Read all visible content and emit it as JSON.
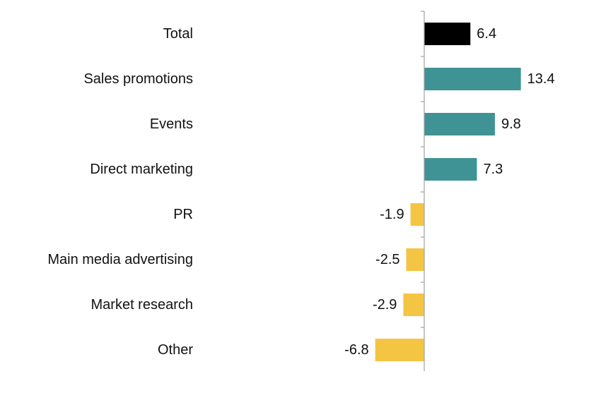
{
  "chart_data": {
    "type": "bar",
    "orientation": "horizontal",
    "title": "",
    "xlabel": "",
    "ylabel": "",
    "categories": [
      "Total",
      "Sales promotions",
      "Events",
      "Direct marketing",
      "PR",
      "Main media advertising",
      "Market research",
      "Other"
    ],
    "values": [
      6.4,
      13.4,
      9.8,
      7.3,
      -1.9,
      -2.5,
      -2.9,
      -6.8
    ],
    "value_labels": [
      "6.4",
      "13.4",
      "9.8",
      "7.3",
      "-1.9",
      "-2.5",
      "-2.9",
      "-6.8"
    ],
    "colors": {
      "total": "#000000",
      "positive": "#3f9395",
      "negative": "#f4c542"
    },
    "axis_color": "#a0a0a0",
    "xlim": [
      -7,
      14.5
    ],
    "grid": false,
    "legend": "none"
  }
}
